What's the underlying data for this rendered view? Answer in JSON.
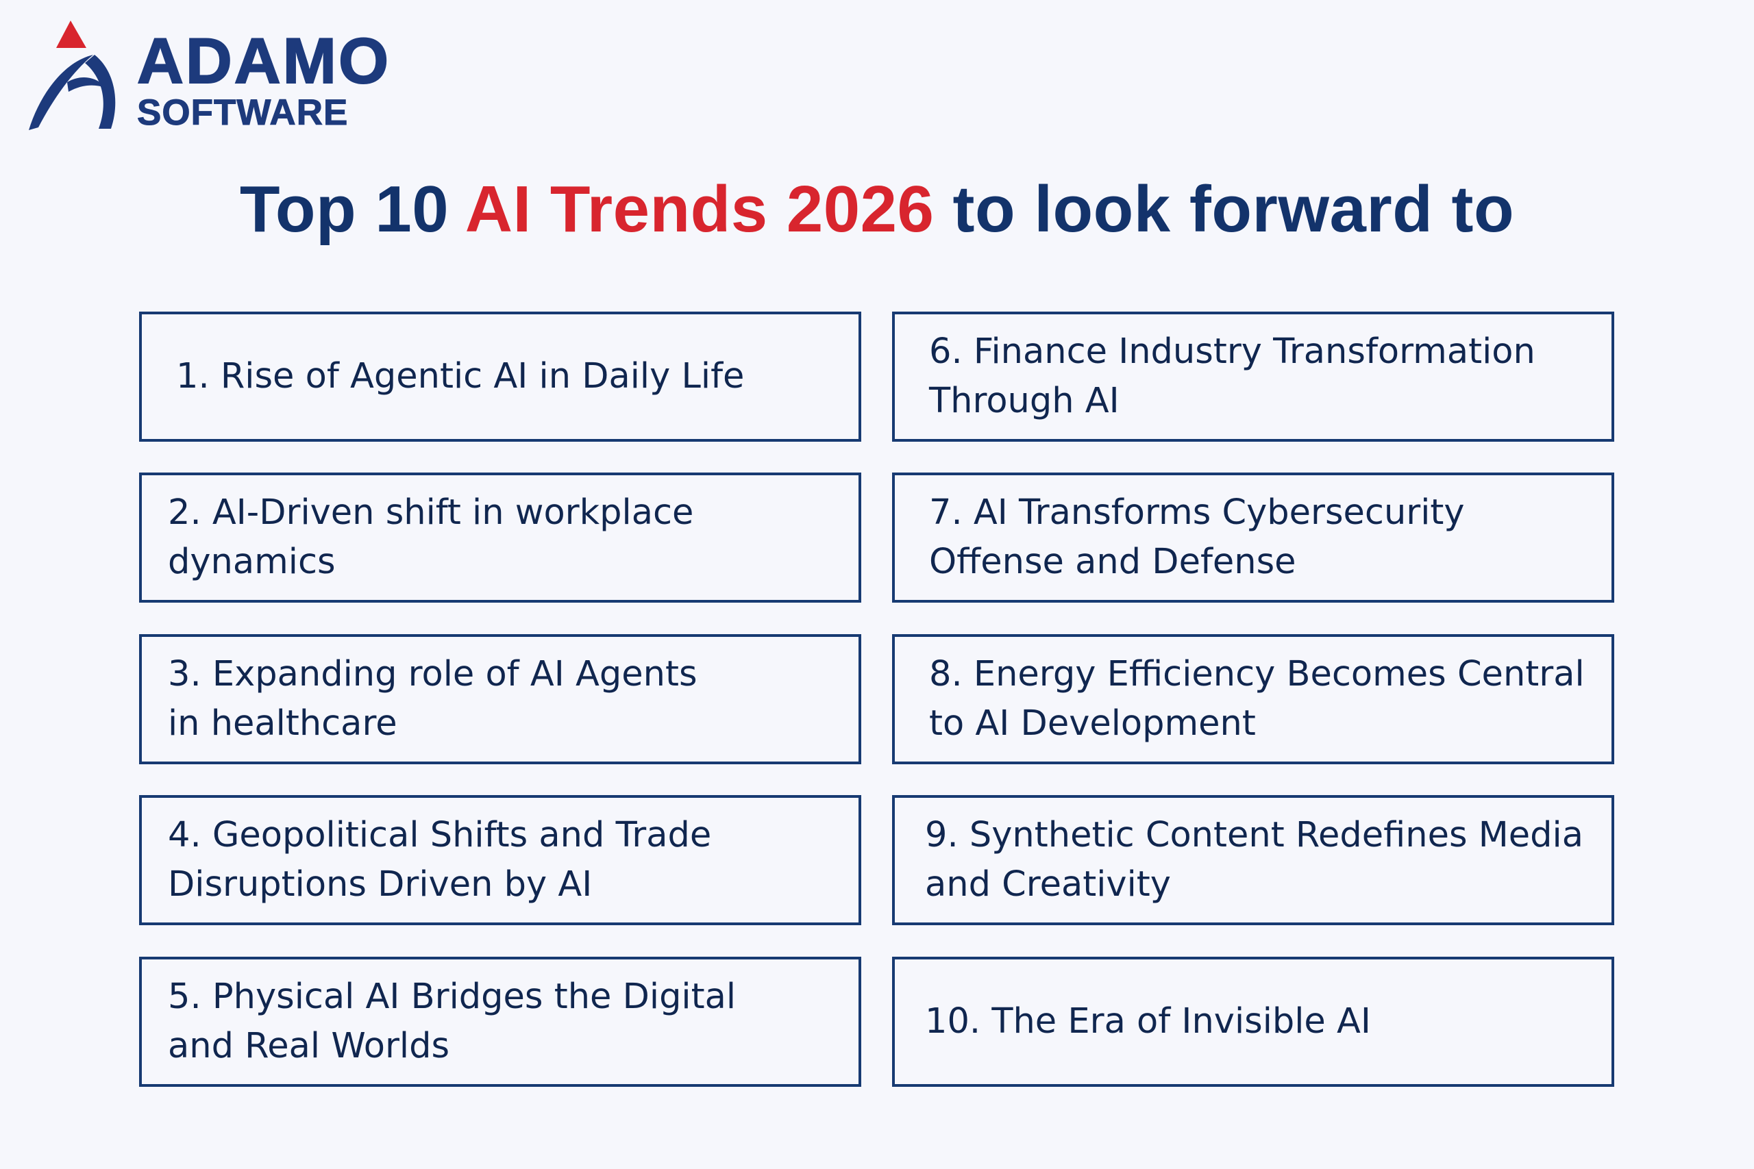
{
  "logo": {
    "brand": "ADAMO",
    "sub": "SOFTWARE",
    "colors": {
      "primary": "#1d3a7c",
      "accent": "#d8252e"
    }
  },
  "title": {
    "part1": "Top 10 ",
    "accent": "AI Trends 2026",
    "part2": " to look forward to"
  },
  "items": [
    {
      "line1": "1. Rise of Agentic AI in Daily Life",
      "line2": ""
    },
    {
      "line1": "2. AI-Driven shift in workplace dynamics",
      "line2": ""
    },
    {
      "line1": "3. Expanding role of AI Agents",
      "line2": "in healthcare"
    },
    {
      "line1": "4. Geopolitical Shifts and Trade",
      "line2": "Disruptions Driven by AI"
    },
    {
      "line1": "5. Physical AI Bridges the Digital",
      "line2": "and Real Worlds"
    },
    {
      "line1": "6. Finance Industry Transformation",
      "line2": "Through AI"
    },
    {
      "line1": "7. AI Transforms Cybersecurity",
      "line2": "Offense and Defense"
    },
    {
      "line1": "8. Energy Efficiency Becomes Central",
      "line2": "to AI Development"
    },
    {
      "line1": "9. Synthetic Content Redefines Media",
      "line2": "and Creativity"
    },
    {
      "line1": "10. The Era of Invisible AI",
      "line2": ""
    }
  ],
  "colors": {
    "background": "#f6f7fc",
    "navy": "#13336b",
    "red": "#d8252e",
    "border": "#173a72"
  }
}
